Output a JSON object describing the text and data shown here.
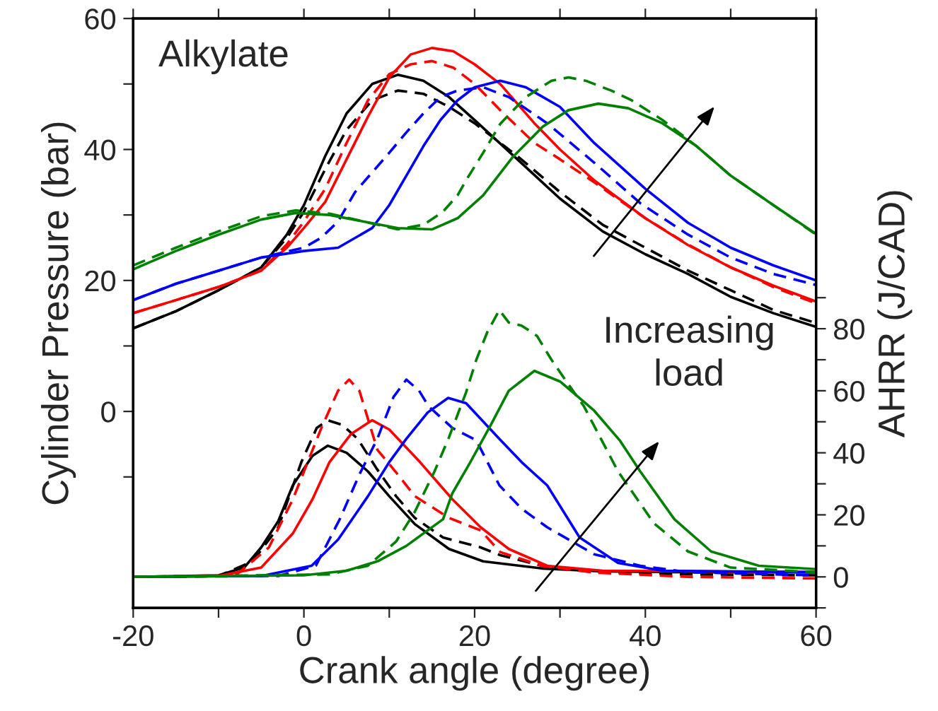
{
  "chart_data": {
    "type": "line",
    "xlabel": "Crank angle (degree)",
    "ylabel": "Cylinder Pressure (bar)",
    "y2label": "AHRR (J/CAD)",
    "annotations": [
      "Alkylate",
      "Increasing\nload"
    ],
    "xlim": [
      -20,
      60
    ],
    "xticks": [
      -20,
      {
        "value": -10,
        "label": null
      },
      0,
      {
        "value": 10,
        "label": null
      },
      20,
      {
        "value": 30,
        "label": null
      },
      40,
      {
        "value": 50,
        "label": null
      },
      60
    ],
    "ylim": [
      -30,
      60
    ],
    "yticks": [
      {
        "value": -10,
        "label": null
      },
      0,
      {
        "value": 10,
        "label": null
      },
      20,
      {
        "value": 30,
        "label": null
      },
      40,
      {
        "value": 50,
        "label": null
      },
      60
    ],
    "y2lim": [
      -10,
      180
    ],
    "y2ticks": [
      {
        "value": -10,
        "label": null
      },
      0,
      {
        "value": 10,
        "label": null
      },
      20,
      {
        "value": 30,
        "label": null
      },
      40,
      {
        "value": 50,
        "label": null
      },
      60,
      {
        "value": 70,
        "label": null
      },
      80,
      {
        "value": 90,
        "label": null
      }
    ],
    "grid": false,
    "series": [
      {
        "color": "#000000",
        "line_style": "solid",
        "axis": "y",
        "x": [
          -20,
          -15,
          -10,
          -5,
          -2,
          0,
          2.5,
          5,
          8,
          11,
          14,
          17,
          20,
          25,
          30,
          35,
          40,
          45,
          50,
          55,
          60
        ],
        "values": [
          12.7,
          15.3,
          18.5,
          22,
          27,
          31.5,
          39,
          45.5,
          50,
          51.4,
          50.5,
          48,
          44.5,
          38.5,
          32.5,
          27.5,
          24,
          21,
          17.5,
          15,
          12.9
        ]
      },
      {
        "color": "#000000",
        "line_style": "dashed",
        "axis": "y",
        "x": [
          -20,
          -15,
          -10,
          -5,
          -2,
          0,
          2.5,
          5,
          8,
          11,
          14,
          17,
          20,
          25,
          30,
          35,
          40,
          45,
          50,
          55,
          60
        ],
        "values": [
          12.7,
          15.3,
          18.5,
          22,
          26.5,
          30.5,
          37,
          43,
          47.5,
          49,
          48.5,
          46.5,
          44,
          39,
          33.5,
          28.5,
          25,
          21.5,
          18.5,
          15.5,
          13.5
        ]
      },
      {
        "color": "#ff0000",
        "line_style": "solid",
        "axis": "y",
        "x": [
          -20,
          -15,
          -10,
          -5,
          -2,
          0,
          2.5,
          5,
          7.5,
          10,
          12.5,
          15,
          17.5,
          20,
          23,
          27,
          30,
          34,
          40,
          45,
          50,
          55,
          60
        ],
        "values": [
          15,
          17,
          19,
          21.5,
          25,
          28,
          32,
          38.5,
          45,
          51,
          54.5,
          55.5,
          55,
          53,
          50,
          44,
          40,
          35.3,
          29.5,
          25.4,
          22,
          19.2,
          16.8
        ]
      },
      {
        "color": "#ff0000",
        "line_style": "dashed",
        "axis": "y",
        "x": [
          -20,
          -15,
          -10,
          -5,
          -2,
          0,
          2.5,
          5,
          7.5,
          10,
          12.5,
          15,
          17.5,
          20,
          23,
          27,
          30,
          34,
          40,
          45,
          50,
          55,
          60
        ],
        "values": [
          15,
          17,
          19,
          21.5,
          25.5,
          29,
          34,
          41,
          47.5,
          51.5,
          53,
          53.5,
          52.5,
          50,
          46,
          41,
          38.5,
          35,
          29.5,
          25.5,
          22,
          19,
          16.5
        ]
      },
      {
        "color": "#0000ff",
        "line_style": "solid",
        "axis": "y",
        "x": [
          -20,
          -15,
          -10,
          -5,
          0,
          4,
          8,
          10,
          12,
          14,
          16,
          18,
          20,
          23,
          26,
          30,
          34,
          40,
          45,
          50,
          55,
          60
        ],
        "values": [
          17,
          19.5,
          21.5,
          23.5,
          24.5,
          25,
          28,
          31.5,
          36,
          40.5,
          44.5,
          47.5,
          49.5,
          50.5,
          49.5,
          46.5,
          41,
          34,
          28.8,
          25,
          22.3,
          20
        ]
      },
      {
        "color": "#0000ff",
        "line_style": "dashed",
        "axis": "y",
        "x": [
          -20,
          -15,
          -10,
          -5,
          0,
          2,
          4,
          6,
          8,
          10,
          12,
          14,
          16,
          18,
          21,
          24,
          28.5,
          34,
          39.4,
          45,
          50,
          55,
          60
        ],
        "values": [
          17,
          19.5,
          21.5,
          23.5,
          25,
          26.5,
          29,
          33.5,
          36.5,
          39.5,
          42.6,
          45.5,
          48,
          49,
          49.5,
          48,
          44,
          38,
          31.8,
          27,
          23.5,
          21,
          19.3
        ]
      },
      {
        "color": "#008000",
        "line_style": "solid",
        "axis": "y",
        "x": [
          -20,
          -15,
          -10,
          -5,
          -1,
          3,
          7,
          11,
          15,
          18,
          21,
          24.5,
          28,
          31,
          34.5,
          38,
          42,
          46,
          50,
          55,
          60
        ],
        "values": [
          21.7,
          24.5,
          27,
          29.3,
          30.3,
          30,
          29,
          28,
          27.8,
          29.5,
          33,
          38.9,
          43.5,
          46,
          47,
          46.3,
          44,
          40.5,
          36,
          31.5,
          27.1
        ]
      },
      {
        "color": "#008000",
        "line_style": "dashed",
        "axis": "y",
        "x": [
          -20,
          -15,
          -10,
          -5,
          -1,
          3,
          7,
          11,
          14,
          16.3,
          18,
          19,
          21,
          23,
          26,
          29,
          31,
          33,
          36,
          38.4,
          42,
          46,
          50,
          55,
          60
        ],
        "values": [
          22.3,
          25,
          27.5,
          29.8,
          30.7,
          30.2,
          29,
          27.8,
          28.5,
          30.5,
          33,
          35.3,
          39.5,
          43.9,
          48,
          50.5,
          51,
          50.5,
          49,
          47.5,
          44.5,
          40.5,
          36,
          31.5,
          27
        ]
      },
      {
        "color": "#000000",
        "line_style": "solid",
        "axis": "y2",
        "x": [
          -20,
          -10,
          -7,
          -5,
          -3,
          -1.3,
          1,
          2.8,
          5,
          7.5,
          10,
          13,
          17,
          21,
          28,
          35,
          45,
          60
        ],
        "values": [
          0,
          0.5,
          3,
          9.5,
          18,
          29.5,
          39,
          42.3,
          40,
          34,
          26,
          17,
          9,
          5,
          2.7,
          1.8,
          1.5,
          1.5
        ]
      },
      {
        "color": "#000000",
        "line_style": "dashed",
        "axis": "y2",
        "x": [
          -20,
          -10,
          -6,
          -3,
          -0.3,
          1.5,
          2.8,
          4.5,
          6.3,
          8.5,
          10.8,
          13,
          16.3,
          20.7,
          23,
          28,
          34,
          45,
          60
        ],
        "values": [
          0,
          0.3,
          5,
          16,
          37,
          48,
          50.5,
          49,
          44.5,
          35,
          26,
          19,
          12.7,
          9.5,
          7,
          3.5,
          1.5,
          0.8,
          0.5
        ]
      },
      {
        "color": "#ff0000",
        "line_style": "solid",
        "axis": "y2",
        "x": [
          -20,
          -10,
          -5,
          -1.3,
          1,
          3,
          5.5,
          8,
          10,
          13.6,
          17.4,
          20.7,
          24,
          28.5,
          35,
          60
        ],
        "values": [
          0,
          0.3,
          3,
          14,
          25,
          37,
          46,
          50.5,
          47.5,
          37,
          25,
          16,
          9,
          3.6,
          2,
          1.5
        ]
      },
      {
        "color": "#ff0000",
        "line_style": "dashed",
        "axis": "y2",
        "x": [
          -20,
          -8,
          -4.1,
          -1.3,
          2,
          4,
          5.3,
          6.5,
          8.6,
          11,
          13,
          17,
          20.7,
          23,
          28,
          34,
          45,
          60
        ],
        "values": [
          0,
          0.5,
          9.5,
          25,
          47.7,
          60,
          63.6,
          60,
          41,
          33,
          26,
          19,
          15,
          8,
          3.5,
          1.4,
          0,
          -0.5
        ]
      },
      {
        "color": "#0000ff",
        "line_style": "solid",
        "axis": "y2",
        "x": [
          -20,
          -5,
          0.9,
          4,
          7.5,
          10,
          12,
          14.5,
          16.9,
          19,
          22.9,
          25.5,
          28.5,
          32.3,
          36.8,
          42,
          60
        ],
        "values": [
          0,
          0.3,
          3.6,
          12,
          26,
          37,
          44.5,
          53,
          57.7,
          56,
          44.5,
          37,
          29.5,
          12.7,
          4.5,
          2,
          1.5
        ]
      },
      {
        "color": "#0000ff",
        "line_style": "dashed",
        "axis": "y2",
        "x": [
          -20,
          -3,
          1.4,
          4.2,
          6.5,
          8.6,
          10.5,
          12,
          13.5,
          14.6,
          17.4,
          20.2,
          22.9,
          25.5,
          28.5,
          34,
          39.4,
          45,
          60
        ],
        "values": [
          0,
          0.3,
          3.6,
          18.6,
          33,
          44.5,
          58,
          63.6,
          60,
          55,
          48,
          44,
          29.5,
          22,
          16,
          7.3,
          3.6,
          1.5,
          0.5
        ]
      },
      {
        "color": "#008000",
        "line_style": "solid",
        "axis": "y2",
        "x": [
          -20,
          0,
          5,
          8.6,
          12,
          16.3,
          17.4,
          19.5,
          21.9,
          24,
          27,
          30,
          34,
          37,
          39.4,
          43.4,
          47.7,
          53.3,
          60
        ],
        "values": [
          0,
          0.5,
          2,
          5,
          10,
          18.6,
          27,
          37,
          49,
          60,
          66.4,
          63,
          53.6,
          44,
          34,
          18.6,
          8.2,
          3.6,
          2.5
        ]
      },
      {
        "color": "#008000",
        "line_style": "dashed",
        "axis": "y2",
        "x": [
          -20,
          3,
          7.5,
          10.8,
          13,
          15.3,
          17,
          19,
          20.2,
          21.5,
          22.9,
          24,
          25.5,
          27.3,
          29,
          31,
          32.8,
          36.8,
          41,
          45,
          50,
          60
        ],
        "values": [
          0,
          0.8,
          3.6,
          11.4,
          21,
          34,
          45,
          59.5,
          70,
          79,
          86,
          82,
          81,
          77.7,
          70,
          62,
          55,
          34,
          17.3,
          8.2,
          3,
          1.5
        ]
      }
    ]
  }
}
